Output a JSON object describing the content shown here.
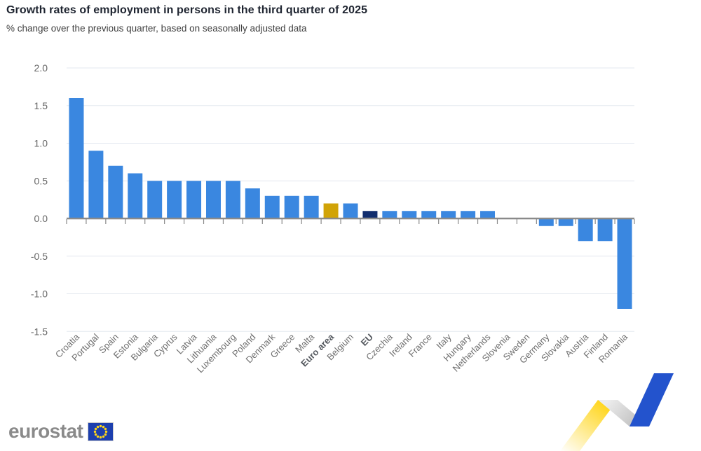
{
  "header": {
    "title": "Growth rates of employment in persons in the third quarter of 2025",
    "subtitle": "% change over the previous quarter, based on seasonally adjusted data"
  },
  "chart_data": {
    "type": "bar",
    "title": "Growth rates of employment in persons in the third quarter of 2025",
    "subtitle": "% change over the previous quarter, based on seasonally adjusted data",
    "xlabel": "",
    "ylabel": "% change over the previous quarter",
    "categories": [
      "Croatia",
      "Portugal",
      "Spain",
      "Estonia",
      "Bulgaria",
      "Cyprus",
      "Latvia",
      "Lithuania",
      "Luxembourg",
      "Poland",
      "Denmark",
      "Greece",
      "Malta",
      "Euro area",
      "Belgium",
      "EU",
      "Czechia",
      "Ireland",
      "France",
      "Italy",
      "Hungary",
      "Netherlands",
      "Slovenia",
      "Sweden",
      "Germany",
      "Slovakia",
      "Austria",
      "Finland",
      "Romania"
    ],
    "values": [
      1.6,
      0.9,
      0.7,
      0.6,
      0.5,
      0.5,
      0.5,
      0.5,
      0.5,
      0.4,
      0.3,
      0.3,
      0.3,
      0.2,
      0.2,
      0.1,
      0.1,
      0.1,
      0.1,
      0.1,
      0.1,
      0.1,
      0.0,
      0.0,
      -0.1,
      -0.1,
      -0.3,
      -0.3,
      -1.2
    ],
    "ylim": [
      -1.5,
      2.0
    ],
    "yticks": [
      2.0,
      1.5,
      1.0,
      0.5,
      0.0,
      -0.5,
      -1.0,
      -1.5
    ],
    "grid": "horizontal",
    "legend": "none",
    "bar_color": "#3a87e0",
    "highlights": {
      "Euro area": "#d1a307",
      "EU": "#112d6e"
    },
    "bold_categories": [
      "Euro area",
      "EU"
    ]
  },
  "footer": {
    "logo_text": "eurostat"
  },
  "colors": {
    "grid": "#e3e8ef",
    "axis": "#8a8a8a",
    "tick_label": "#666666",
    "x_label": "#6e6e6e",
    "x_label_bold": "#55595f",
    "flag_blue": "#1d3fae",
    "flag_border": "#c9c9c9",
    "flag_stars": "#ffd617",
    "logo_gray": "#8a8a8a",
    "ribbon_yellow": "#ffd20a",
    "ribbon_gray_light": "#ededed",
    "ribbon_gray_dark": "#bdbdbd",
    "ribbon_blue": "#2353cd",
    "ribbon_fade": "#ffffff"
  }
}
